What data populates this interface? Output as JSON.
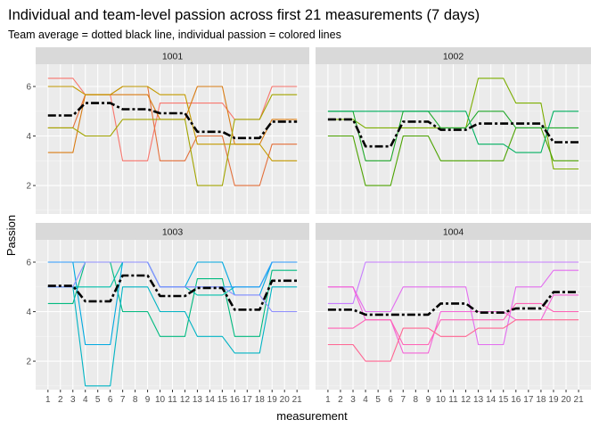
{
  "chart_data": {
    "type": "line",
    "title": "Individual and team-level passion across first 21 measurements (7 days)",
    "subtitle": "Team average = dotted black line, individual passion = colored lines",
    "xlabel": "measurement",
    "ylabel": "Passion",
    "x": [
      1,
      2,
      3,
      4,
      5,
      6,
      7,
      8,
      9,
      10,
      11,
      12,
      13,
      14,
      15,
      16,
      17,
      18,
      19,
      20,
      21
    ],
    "x_tick_labels": [
      "1",
      "2",
      "3",
      "4",
      "5",
      "6",
      "7",
      "8",
      "9",
      "10",
      "11",
      "12",
      "13",
      "14",
      "15",
      "16",
      "17",
      "18",
      "19",
      "20",
      "21"
    ],
    "ylim": [
      0.85,
      6.9
    ],
    "y_ticks": [
      2,
      4,
      6
    ],
    "y_tick_labels": [
      "2",
      "4",
      "6"
    ],
    "grid": true,
    "facets": [
      {
        "panel": "1001",
        "team_mean": [
          4.83,
          4.83,
          4.83,
          5.33,
          5.33,
          5.33,
          5.08,
          5.08,
          5.08,
          4.92,
          4.92,
          4.92,
          4.17,
          4.17,
          4.17,
          3.92,
          3.92,
          3.92,
          4.58,
          4.58,
          4.58
        ],
        "series": [
          {
            "color": "#F8766D",
            "values": [
              6.33,
              6.33,
              6.33,
              5.67,
              5.67,
              5.67,
              3,
              3,
              3,
              5.33,
              5.33,
              5.33,
              5.33,
              5.33,
              5.33,
              4.67,
              4.67,
              4.67,
              6,
              6,
              6
            ]
          },
          {
            "color": "#E36F3A",
            "values": [
              4.33,
              4.33,
              4.33,
              5.67,
              5.67,
              5.67,
              6,
              6,
              6,
              3,
              3,
              3,
              4,
              4,
              4,
              2,
              2,
              2,
              3.67,
              3.67,
              3.67
            ]
          },
          {
            "color": "#D97C14",
            "values": [
              3.33,
              3.33,
              3.33,
              5.67,
              5.67,
              5.67,
              5.67,
              5.67,
              5.67,
              4.67,
              4.67,
              4.67,
              6,
              6,
              6,
              3.67,
              3.67,
              3.67,
              4.67,
              4.67,
              4.67
            ]
          },
          {
            "color": "#C39A00",
            "values": [
              6,
              6,
              6,
              5.67,
              5.67,
              5.67,
              6,
              6,
              6,
              5.67,
              5.67,
              5.67,
              3.67,
              3.67,
              3.67,
              3.67,
              3.67,
              3.67,
              3,
              3,
              3
            ]
          },
          {
            "color": "#A3A500",
            "values": [
              4.33,
              4.33,
              4.33,
              4,
              4,
              4,
              4.67,
              4.67,
              4.67,
              4.67,
              4.67,
              4.67,
              2,
              2,
              2,
              4.67,
              4.67,
              4.67,
              5.67,
              5.67,
              5.67
            ]
          }
        ]
      },
      {
        "panel": "1002",
        "team_mean": [
          4.67,
          4.67,
          4.67,
          3.58,
          3.58,
          3.58,
          4.58,
          4.58,
          4.58,
          4.25,
          4.25,
          4.25,
          4.5,
          4.5,
          4.5,
          4.5,
          4.5,
          4.5,
          3.75,
          3.75,
          3.75
        ],
        "series": [
          {
            "color": "#7CAE00",
            "values": [
              4.67,
              4.67,
              4.67,
              4.33,
              4.33,
              4.33,
              4.33,
              4.33,
              4.33,
              4.33,
              4.33,
              4.33,
              6.33,
              6.33,
              6.33,
              5.33,
              5.33,
              5.33,
              2.67,
              2.67,
              2.67
            ]
          },
          {
            "color": "#4CA300",
            "values": [
              4,
              4,
              4,
              2,
              2,
              2,
              4,
              4,
              4,
              3,
              3,
              3,
              3,
              3,
              3,
              4.33,
              4.33,
              4.33,
              3,
              3,
              3
            ]
          },
          {
            "color": "#1FA82A",
            "values": [
              5,
              5,
              5,
              3,
              3,
              3,
              5,
              5,
              5,
              4.33,
              4.33,
              4.33,
              5,
              5,
              5,
              4.33,
              4.33,
              4.33,
              4.33,
              4.33,
              4.33
            ]
          },
          {
            "color": "#00B060",
            "values": [
              5,
              5,
              5,
              5,
              5,
              5,
              5,
              5,
              5,
              5,
              5,
              5,
              3.67,
              3.67,
              3.67,
              3.33,
              3.33,
              3.33,
              5,
              5,
              5
            ]
          }
        ]
      },
      {
        "panel": "1003",
        "team_mean": [
          5.04,
          5.04,
          5.04,
          4.42,
          4.42,
          4.42,
          5.46,
          5.46,
          5.46,
          4.63,
          4.63,
          4.63,
          4.96,
          4.96,
          4.96,
          4.08,
          4.08,
          4.08,
          5.25,
          5.25,
          5.25
        ],
        "series": [
          {
            "color": "#00BA7F",
            "values": [
              4.33,
              4.33,
              4.33,
              6,
              6,
              6,
              4,
              4,
              4,
              3,
              3,
              3,
              5.33,
              5.33,
              5.33,
              3,
              3,
              3,
              5.67,
              5.67,
              5.67
            ]
          },
          {
            "color": "#00BFAA",
            "values": [
              5,
              5,
              5,
              5,
              5,
              5,
              6,
              6,
              6,
              5,
              5,
              5,
              4.67,
              4.67,
              4.67,
              5,
              5,
              5,
              6,
              6,
              6
            ]
          },
          {
            "color": "#00B4C4",
            "values": [
              5,
              5,
              5,
              1,
              1,
              1,
              5,
              5,
              5,
              4,
              4,
              4,
              3,
              3,
              3,
              2.33,
              2.33,
              2.33,
              5,
              5,
              5
            ]
          },
          {
            "color": "#00A9E0",
            "values": [
              6,
              6,
              6,
              2.67,
              2.67,
              2.67,
              6,
              6,
              6,
              5,
              5,
              5,
              6,
              6,
              6,
              4.67,
              4.67,
              4.67,
              6,
              6,
              6
            ]
          },
          {
            "color": "#2C9BFF",
            "values": [
              6,
              6,
              6,
              6,
              6,
              6,
              6,
              6,
              6,
              5,
              5,
              5,
              5,
              5,
              5,
              5,
              5,
              5,
              6,
              6,
              6
            ]
          },
          {
            "color": "#8F8FFF",
            "values": [
              5,
              5,
              5,
              6,
              6,
              6,
              6,
              6,
              6,
              5,
              5,
              5,
              5,
              5,
              5,
              4.67,
              4.67,
              4.67,
              4,
              4,
              4
            ]
          }
        ]
      },
      {
        "panel": "1004",
        "team_mean": [
          4.08,
          4.08,
          4.08,
          3.88,
          3.88,
          3.88,
          3.88,
          3.88,
          3.88,
          4.33,
          4.33,
          4.33,
          3.96,
          3.96,
          3.96,
          4.13,
          4.13,
          4.13,
          4.79,
          4.79,
          4.79
        ],
        "series": [
          {
            "color": "#C77CFF",
            "values": [
              4.33,
              4.33,
              4.33,
              6,
              6,
              6,
              6,
              6,
              6,
              6,
              6,
              6,
              6,
              6,
              6,
              6,
              6,
              6,
              6,
              6,
              6
            ]
          },
          {
            "color": "#E36CF0",
            "values": [
              5,
              5,
              5,
              4,
              4,
              4,
              5,
              5,
              5,
              5,
              5,
              5,
              2.67,
              2.67,
              2.67,
              5,
              5,
              5,
              5.67,
              5.67,
              5.67
            ]
          },
          {
            "color": "#F464D7",
            "values": [
              5,
              5,
              5,
              3.67,
              3.67,
              3.67,
              2.33,
              2.33,
              2.33,
              4,
              4,
              4,
              4,
              4,
              4,
              3.67,
              3.67,
              3.67,
              4.67,
              4.67,
              4.67
            ]
          },
          {
            "color": "#FF61B5",
            "values": [
              3.33,
              3.33,
              3.33,
              3.67,
              3.67,
              3.67,
              2.67,
              2.67,
              2.67,
              3.67,
              3.67,
              3.67,
              3.67,
              3.67,
              3.67,
              4.33,
              4.33,
              4.33,
              4,
              4,
              4
            ]
          },
          {
            "color": "#FF6592",
            "values": [
              2.67,
              2.67,
              2.67,
              2,
              2,
              2,
              3.33,
              3.33,
              3.33,
              3,
              3,
              3,
              3.33,
              3.33,
              3.33,
              3.67,
              3.67,
              3.67,
              3.67,
              3.67,
              3.67
            ]
          }
        ]
      }
    ]
  }
}
